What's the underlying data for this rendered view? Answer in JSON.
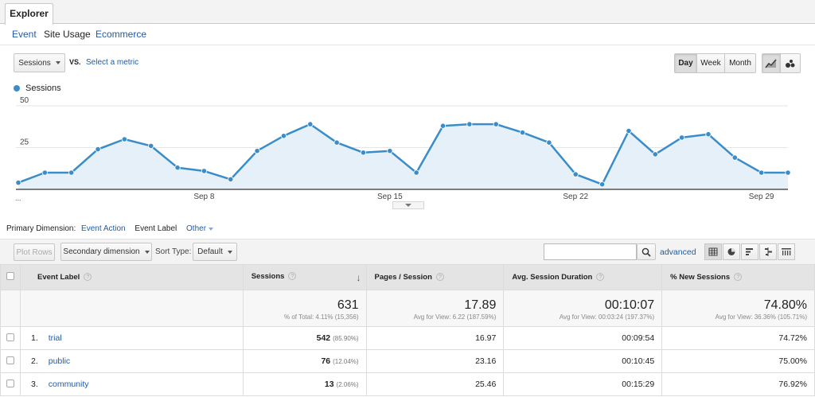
{
  "tabs": {
    "explorer": "Explorer"
  },
  "subtabs": [
    "Event",
    "Site Usage",
    "Ecommerce"
  ],
  "metric": {
    "selected": "Sessions",
    "vs_label": "VS.",
    "select_metric": "Select a metric"
  },
  "period": {
    "day": "Day",
    "week": "Week",
    "month": "Month"
  },
  "legend": {
    "series": "Sessions",
    "color": "#3a8dc8"
  },
  "chart_data": {
    "type": "area",
    "series": [
      {
        "name": "Sessions",
        "values": [
          4,
          10,
          10,
          24,
          30,
          26,
          13,
          11,
          6,
          23,
          32,
          39,
          28,
          22,
          23,
          10,
          38,
          39,
          39,
          34,
          28,
          9,
          3,
          35,
          21,
          31,
          33,
          19,
          10,
          10
        ]
      }
    ],
    "x_tick_labels": [
      "Sep 8",
      "Sep 15",
      "Sep 22",
      "Sep 29"
    ],
    "x_tick_indices": [
      7,
      14,
      21,
      28
    ],
    "x_start_label": "...",
    "y_ticks": [
      25,
      50
    ],
    "ylim": [
      0,
      50
    ],
    "grid": true,
    "line_color": "#3a8dc8",
    "fill_color": "#e6f0f9"
  },
  "primary_dimension": {
    "label": "Primary Dimension:",
    "options": [
      "Event Action",
      "Event Label",
      "Other"
    ]
  },
  "toolbar": {
    "plot_rows": "Plot Rows",
    "secondary_dimension": "Secondary dimension",
    "sort_type_label": "Sort Type:",
    "sort_type": "Default",
    "advanced": "advanced",
    "search_placeholder": ""
  },
  "table": {
    "headers": [
      "Event Label",
      "Sessions",
      "Pages / Session",
      "Avg. Session Duration",
      "% New Sessions"
    ],
    "totals": [
      {
        "value": "631",
        "sub": "% of Total: 4.11% (15,356)"
      },
      {
        "value": "17.89",
        "sub": "Avg for View: 6.22 (187.59%)"
      },
      {
        "value": "00:10:07",
        "sub": "Avg for View: 00:03:24 (197.37%)"
      },
      {
        "value": "74.80%",
        "sub": "Avg for View: 36.36% (105.71%)"
      }
    ],
    "rows": [
      {
        "num": "1.",
        "label": "trial",
        "sessions": "542",
        "pct": "(85.90%)",
        "pages": "16.97",
        "duration": "00:09:54",
        "new": "74.72%"
      },
      {
        "num": "2.",
        "label": "public",
        "sessions": "76",
        "pct": "(12.04%)",
        "pages": "23.16",
        "duration": "00:10:45",
        "new": "75.00%"
      },
      {
        "num": "3.",
        "label": "community",
        "sessions": "13",
        "pct": "(2.06%)",
        "pages": "25.46",
        "duration": "00:15:29",
        "new": "76.92%"
      }
    ]
  }
}
